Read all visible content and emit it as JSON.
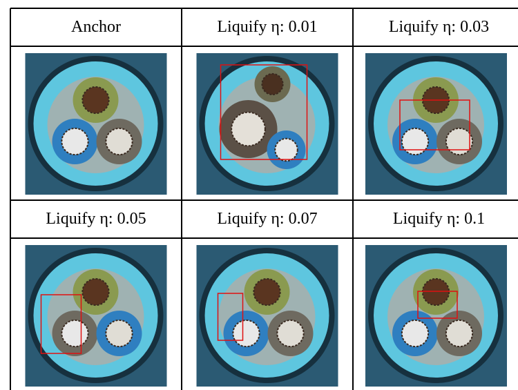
{
  "table": {
    "rows": [
      [
        "Anchor",
        "Liquify η: 0.01",
        "Liquify η: 0.03"
      ],
      [
        "Liquify η: 0.05",
        "Liquify η: 0.07",
        "Liquify η: 0.1"
      ]
    ]
  }
}
